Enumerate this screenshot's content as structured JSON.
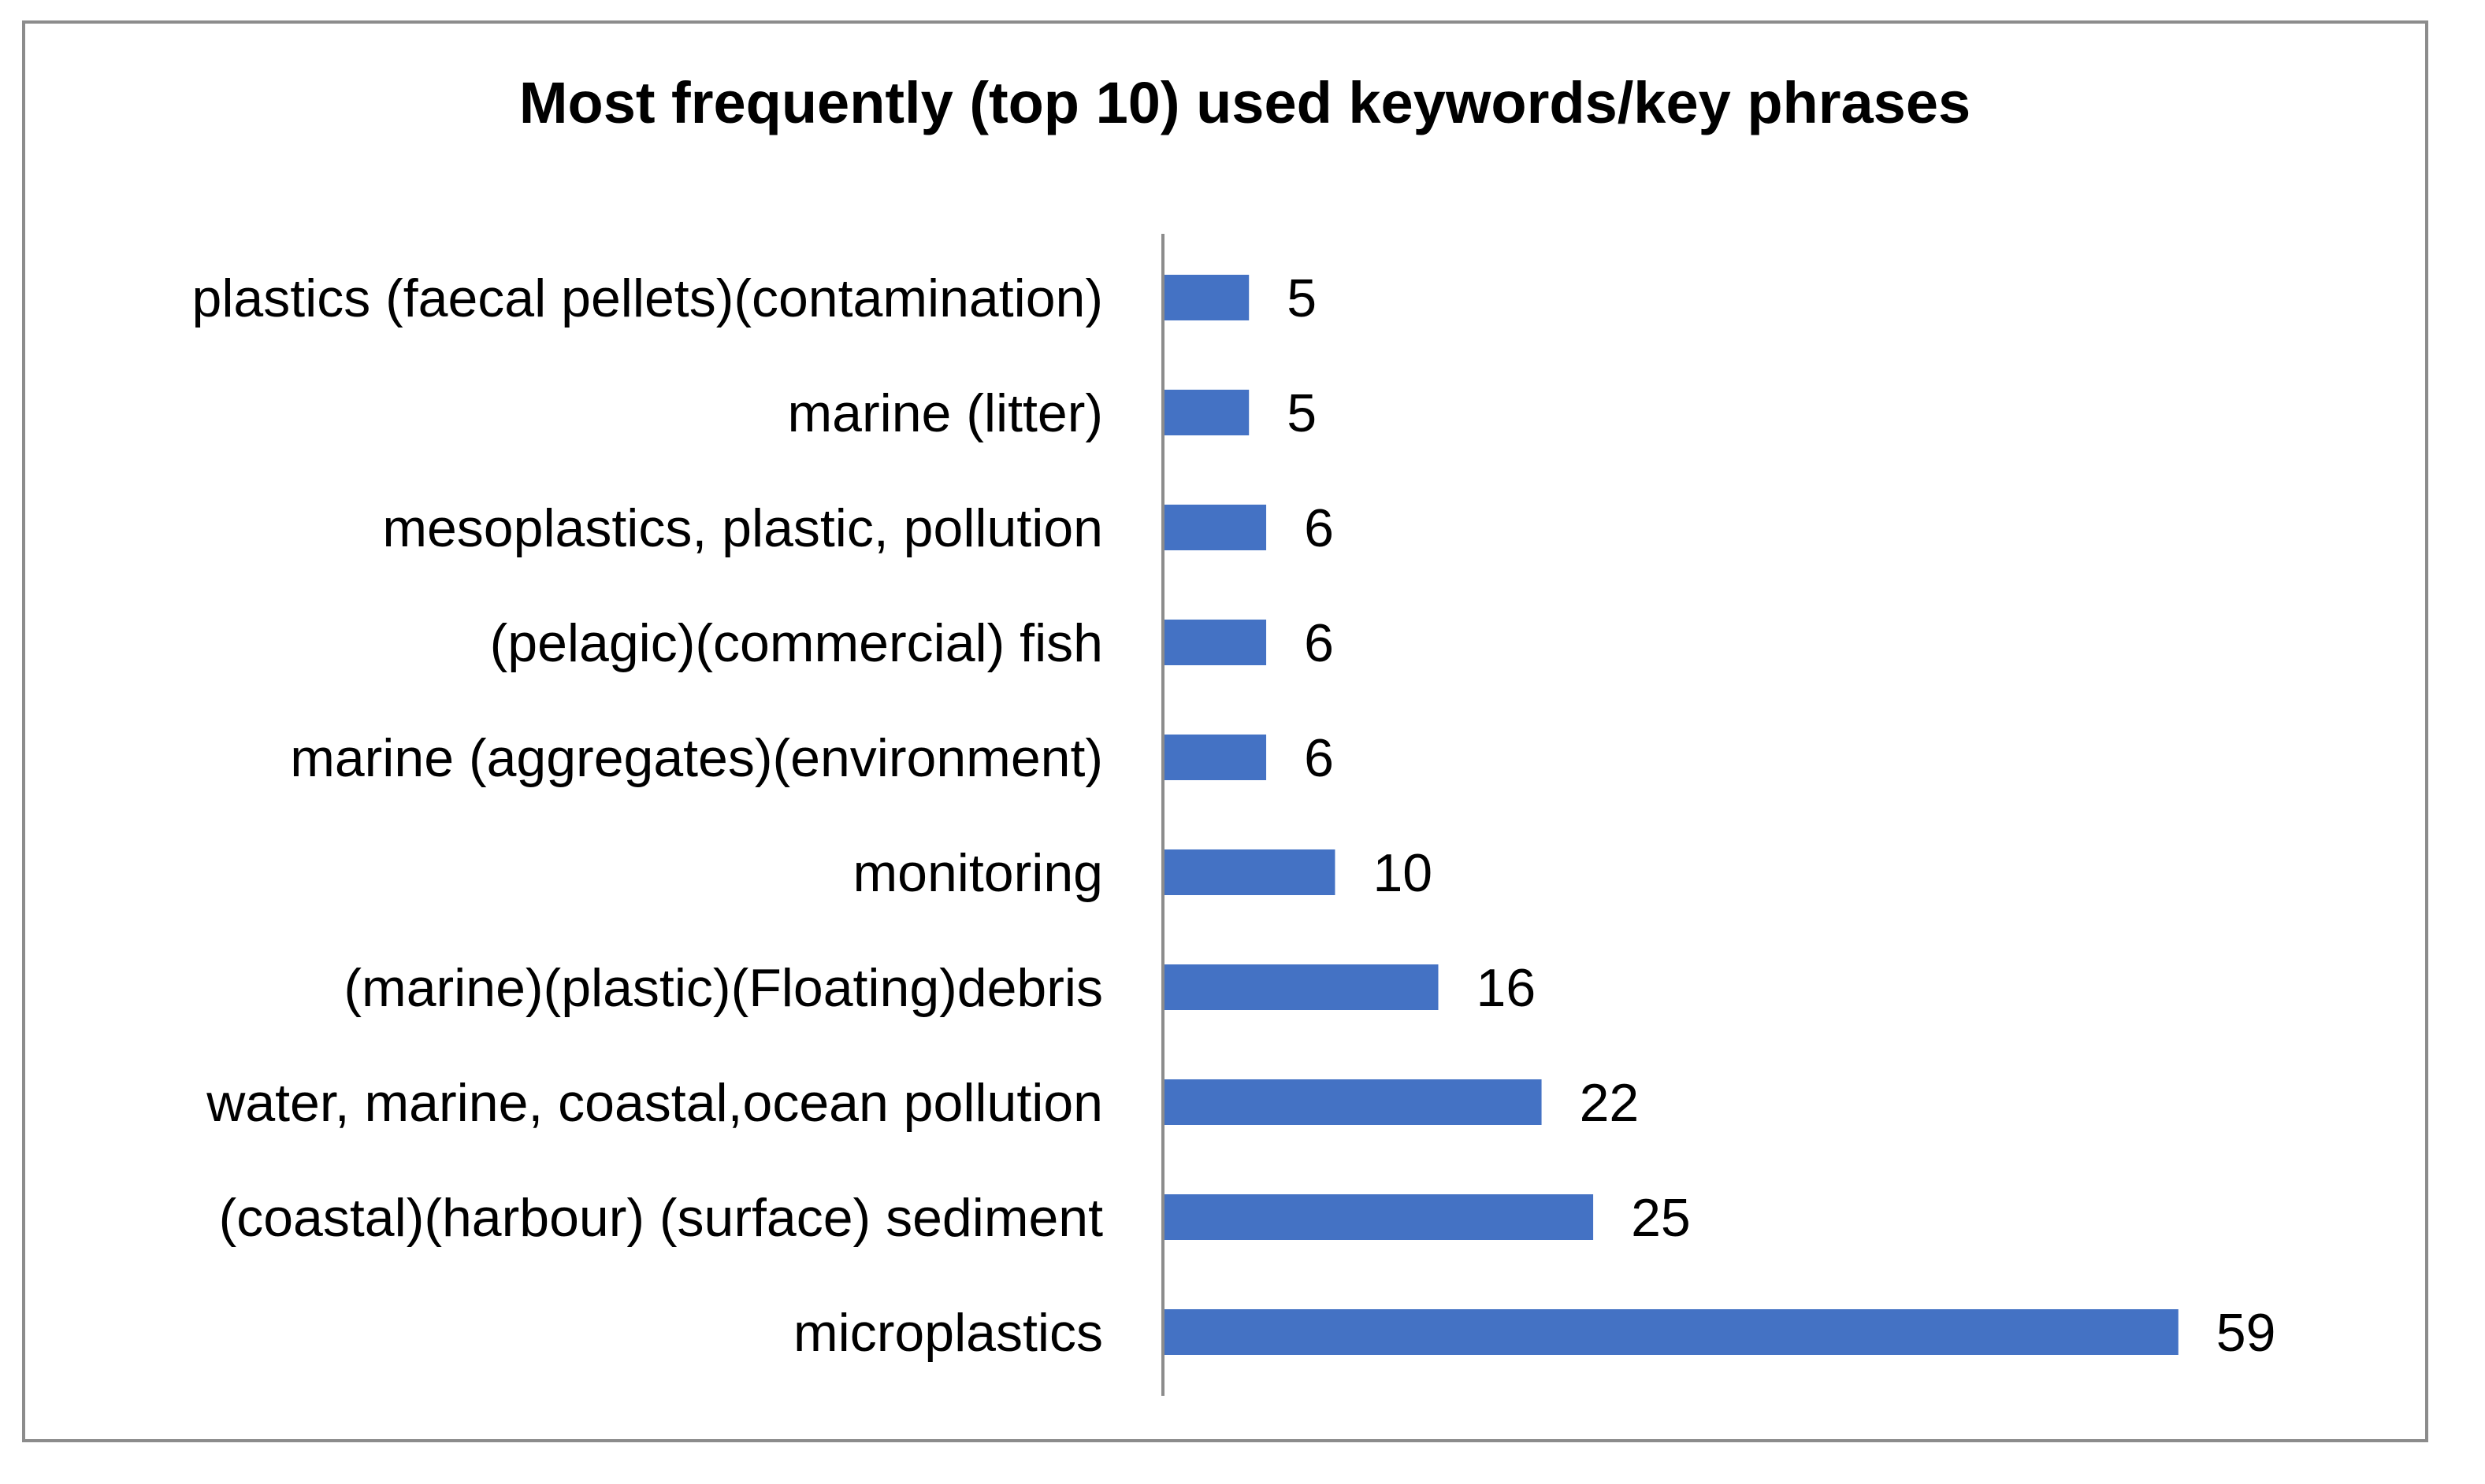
{
  "chart_data": {
    "type": "bar",
    "orientation": "horizontal",
    "title": "Most frequently (top 10) used keywords/key phrases",
    "xlabel": "",
    "ylabel": "",
    "categories": [
      "plastics (faecal pellets)(contamination)",
      "marine (litter)",
      "mesoplastics, plastic, pollution",
      "(pelagic)(commercial) fish",
      "marine (aggregates)(environment)",
      "monitoring",
      "(marine)(plastic)(Floating)debris",
      "water, marine, coastal,ocean pollution",
      "(coastal)(harbour) (surface) sediment",
      "microplastics"
    ],
    "values": [
      5,
      5,
      6,
      6,
      6,
      10,
      16,
      22,
      25,
      59
    ],
    "xlim": [
      0,
      64
    ],
    "grid": false,
    "legend": "none",
    "bar_color": "#4472C4"
  }
}
